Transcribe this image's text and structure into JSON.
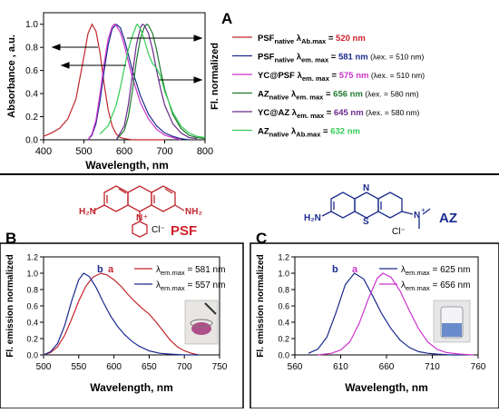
{
  "panelA": {
    "label": "A",
    "ylabel": "Absorbance , a.u.",
    "y2label": "Fl. normalized",
    "xlabel": "Wavelength, nm",
    "xticks": [
      "400",
      "500",
      "600",
      "700",
      "800"
    ],
    "yticks": [
      "0.0",
      "0.2",
      "0.4",
      "0.6",
      "0.8",
      "1.0"
    ],
    "legend": [
      {
        "text": "PSF",
        "sub": "native",
        "lam": " λ",
        "lsub": "Ab.max",
        "eq": " = ",
        "val": "520 nm",
        "color": "#c0262d",
        "valcolor": "#d0202a",
        "extra": ""
      },
      {
        "text": "PSF",
        "sub": "native",
        "lam": " λ",
        "lsub": "em. max",
        "eq": " = ",
        "val": "581 nm",
        "color": "#1a2a8c",
        "valcolor": "#1a2a8c",
        "extra": " (λex. = 510 nm)"
      },
      {
        "text": "YC@PSF",
        "sub": "",
        "lam": " λ",
        "lsub": "em. max",
        "eq": " = ",
        "val": "575 nm",
        "color": "#cc33cc",
        "valcolor": "#cc33cc",
        "extra": " (λex. = 510 nm)"
      },
      {
        "text": "AZ",
        "sub": "native",
        "lam": " λ",
        "lsub": "em. max",
        "eq": " = ",
        "val": "656 nm",
        "color": "#1f7a2e",
        "valcolor": "#1f7a2e",
        "extra": " (λex. = 580 nm)"
      },
      {
        "text": "YC@AZ",
        "sub": "",
        "lam": " λ",
        "lsub": "em. max",
        "eq": " = ",
        "val": "645 nm",
        "color": "#6a2a8a",
        "valcolor": "#6a2a8a",
        "extra": " (λex. = 580 nm)"
      },
      {
        "text": "AZ",
        "sub": "native",
        "lam": " λ",
        "lsub": "Ab.max",
        "eq": " = ",
        "val": "632 nm",
        "color": "#33cc55",
        "valcolor": "#33cc55",
        "extra": ""
      }
    ]
  },
  "panelB": {
    "label": "B",
    "molecule": "PSF",
    "atom_nh2_left": "H₂N",
    "atom_nh2_right": "NH₂",
    "atom_n": "N",
    "atom_plus": "+",
    "anion": "Cl⁻",
    "ylabel": "Fl. emission normalized",
    "xlabel": "Wavelength, nm",
    "xticks": [
      "500",
      "550",
      "600",
      "650",
      "700",
      "750"
    ],
    "yticks": [
      "0.0",
      "0.2",
      "0.4",
      "0.6",
      "0.8",
      "1.0",
      "1.2"
    ],
    "legend": [
      {
        "lam": "λ",
        "lsub": "em.max",
        "val": " = 581 nm",
        "color": "#c0262d"
      },
      {
        "lam": "λ",
        "lsub": "em.max",
        "val": " = 557 nm",
        "color": "#1a2a8c"
      }
    ],
    "peak_a": "a",
    "peak_b": "b"
  },
  "panelC": {
    "label": "C",
    "molecule": "AZ",
    "atom_nh2": "H₂N",
    "atom_n": "N",
    "atom_s": "S",
    "atom_nplus": "N",
    "atom_plus": "+",
    "anion": "Cl⁻",
    "ylabel": "Fl. emission normalized",
    "xlabel": "Wavelength, nm",
    "xticks": [
      "560",
      "610",
      "660",
      "710",
      "760"
    ],
    "yticks": [
      "0.0",
      "0.2",
      "0.4",
      "0.6",
      "0.8",
      "1.0",
      "1.2"
    ],
    "legend": [
      {
        "lam": "λ",
        "lsub": "em.max",
        "val": " = 625 nm",
        "color": "#1a2a8c"
      },
      {
        "lam": "λ",
        "lsub": "em.max",
        "val": " = 656 nm",
        "color": "#cc33cc"
      }
    ],
    "peak_a": "a",
    "peak_b": "b"
  },
  "chart_data": [
    {
      "type": "line",
      "panel": "A",
      "xlabel": "Wavelength, nm",
      "ylabel": "Absorbance , a.u.",
      "xlim": [
        400,
        800
      ],
      "ylim": [
        0,
        1.1
      ],
      "series": [
        {
          "name": "PSF native λAb.max = 520 nm",
          "color": "#c0262d",
          "peak": 520,
          "x": [
            400,
            420,
            440,
            460,
            480,
            500,
            510,
            520,
            530,
            540,
            550,
            560,
            570,
            580,
            590,
            600,
            620,
            640,
            660,
            680,
            700
          ],
          "y": [
            0.03,
            0.06,
            0.1,
            0.18,
            0.35,
            0.72,
            0.92,
            1.0,
            0.94,
            0.75,
            0.48,
            0.26,
            0.12,
            0.05,
            0.02,
            0.01,
            0,
            0,
            0,
            0,
            0
          ]
        },
        {
          "name": "PSF native λem. max = 581 nm",
          "color": "#1a2a8c",
          "peak": 581,
          "x": [
            510,
            520,
            530,
            540,
            550,
            560,
            570,
            580,
            590,
            600,
            610,
            620,
            640,
            660,
            680,
            700,
            720,
            740,
            760
          ],
          "y": [
            0.0,
            0.04,
            0.14,
            0.34,
            0.6,
            0.82,
            0.96,
            1.0,
            0.97,
            0.87,
            0.74,
            0.6,
            0.38,
            0.22,
            0.12,
            0.06,
            0.03,
            0.01,
            0
          ]
        },
        {
          "name": "YC@PSF λem. max = 575 nm",
          "color": "#cc33cc",
          "peak": 575,
          "x": [
            510,
            520,
            530,
            540,
            550,
            560,
            570,
            575,
            580,
            590,
            600,
            610,
            620,
            640,
            660,
            680,
            700,
            720,
            740
          ],
          "y": [
            0.0,
            0.05,
            0.17,
            0.4,
            0.66,
            0.87,
            0.98,
            1.0,
            0.99,
            0.93,
            0.82,
            0.68,
            0.54,
            0.32,
            0.18,
            0.09,
            0.04,
            0.02,
            0
          ]
        },
        {
          "name": "AZ native λem. max = 656 nm",
          "color": "#1f7a2e",
          "peak": 656,
          "x": [
            580,
            600,
            610,
            620,
            630,
            640,
            650,
            656,
            660,
            670,
            680,
            690,
            700,
            720,
            740,
            760,
            780,
            800
          ],
          "y": [
            0.0,
            0.08,
            0.2,
            0.42,
            0.68,
            0.88,
            0.98,
            1.0,
            0.99,
            0.92,
            0.78,
            0.6,
            0.44,
            0.22,
            0.1,
            0.04,
            0.02,
            0.01
          ]
        },
        {
          "name": "YC@AZ λem. max = 645 nm",
          "color": "#6a2a8a",
          "peak": 645,
          "x": [
            580,
            600,
            610,
            620,
            630,
            640,
            645,
            650,
            660,
            670,
            680,
            690,
            700,
            720,
            740,
            760,
            780
          ],
          "y": [
            0.0,
            0.12,
            0.3,
            0.56,
            0.82,
            0.97,
            1.0,
            0.99,
            0.92,
            0.78,
            0.6,
            0.44,
            0.3,
            0.14,
            0.06,
            0.02,
            0.01
          ]
        },
        {
          "name": "AZ native λAb.max = 632 nm",
          "color": "#33cc55",
          "peak": 632,
          "x": [
            540,
            560,
            580,
            590,
            600,
            610,
            620,
            630,
            632,
            640,
            650,
            660,
            670,
            680,
            690,
            700,
            720,
            740,
            760,
            780,
            800
          ],
          "y": [
            0.05,
            0.12,
            0.3,
            0.45,
            0.62,
            0.78,
            0.9,
            0.99,
            1.0,
            0.96,
            0.86,
            0.74,
            0.66,
            0.62,
            0.55,
            0.42,
            0.24,
            0.12,
            0.06,
            0.03,
            0.02
          ]
        }
      ]
    },
    {
      "type": "line",
      "panel": "B",
      "xlabel": "Wavelength, nm",
      "ylabel": "Fl. emission normalized",
      "xlim": [
        500,
        750
      ],
      "ylim": [
        0,
        1.2
      ],
      "series": [
        {
          "name": "a",
          "color": "#c0262d",
          "x": [
            500,
            510,
            520,
            530,
            540,
            550,
            560,
            570,
            581,
            590,
            600,
            610,
            620,
            630,
            640,
            650,
            660,
            670,
            680,
            690,
            700,
            710,
            720
          ],
          "y": [
            0.0,
            0.03,
            0.1,
            0.24,
            0.44,
            0.66,
            0.84,
            0.95,
            1.0,
            0.98,
            0.92,
            0.84,
            0.74,
            0.65,
            0.57,
            0.5,
            0.4,
            0.29,
            0.18,
            0.1,
            0.05,
            0.02,
            0.0
          ]
        },
        {
          "name": "b",
          "color": "#1a2a8c",
          "x": [
            500,
            510,
            520,
            530,
            540,
            550,
            557,
            565,
            575,
            585,
            595,
            605,
            615,
            625,
            635,
            650,
            665,
            680,
            700,
            720
          ],
          "y": [
            0.0,
            0.04,
            0.14,
            0.36,
            0.66,
            0.92,
            1.0,
            0.96,
            0.82,
            0.64,
            0.48,
            0.35,
            0.25,
            0.17,
            0.11,
            0.05,
            0.02,
            0.01,
            0.0,
            0.0
          ]
        }
      ]
    },
    {
      "type": "line",
      "panel": "C",
      "xlabel": "Wavelength, nm",
      "ylabel": "Fl. emission normalized",
      "xlim": [
        560,
        760
      ],
      "ylim": [
        0,
        1.2
      ],
      "series": [
        {
          "name": "b",
          "color": "#1a2a8c",
          "x": [
            575,
            585,
            595,
            605,
            615,
            625,
            635,
            645,
            655,
            665,
            675,
            685,
            695,
            705,
            715,
            730,
            745
          ],
          "y": [
            0.02,
            0.07,
            0.22,
            0.52,
            0.86,
            1.0,
            0.93,
            0.72,
            0.5,
            0.32,
            0.18,
            0.09,
            0.04,
            0.02,
            0.01,
            0.0,
            0.0
          ]
        },
        {
          "name": "a",
          "color": "#cc33cc",
          "x": [
            585,
            600,
            610,
            620,
            630,
            640,
            650,
            656,
            665,
            675,
            685,
            695,
            705,
            715,
            725,
            740,
            755
          ],
          "y": [
            0.0,
            0.02,
            0.06,
            0.16,
            0.38,
            0.68,
            0.94,
            1.0,
            0.95,
            0.78,
            0.54,
            0.32,
            0.16,
            0.07,
            0.03,
            0.01,
            0.0
          ]
        }
      ]
    }
  ]
}
